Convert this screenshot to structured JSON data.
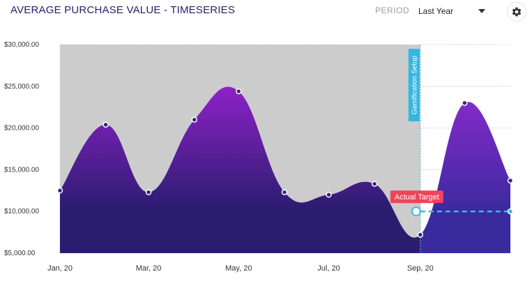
{
  "header": {
    "title": "AVERAGE PURCHASE VALUE - TIMESERIES",
    "period_label": "PERIOD",
    "period_value": "Last Year",
    "settings_icon": "gear-icon"
  },
  "colors": {
    "area_top": "#8d22c8",
    "area_bottom": "#2a1c6e",
    "forecast_top": "#8e2ad0",
    "forecast_bottom": "#3b2a9e",
    "gray_region": "#cccccc",
    "marker_line": "#3fb8e0",
    "badge_blue": "#35b7e0",
    "badge_red": "#f0445a",
    "target_line": "#3fb8e0"
  },
  "chart_data": {
    "type": "area",
    "x": [
      "2020-01-01",
      "2020-02-01",
      "2020-03-01",
      "2020-04-01",
      "2020-05-01",
      "2020-06-01",
      "2020-07-01",
      "2020-08-01",
      "2020-09-01",
      "2020-10-01",
      "2020-11-01"
    ],
    "series": [
      {
        "values": [
          12500,
          20400,
          12300,
          21000,
          24400,
          12300,
          12000,
          13300,
          7200,
          23000,
          13700
        ]
      }
    ],
    "x_ticks": [
      "Jan, 20",
      "Mar, 20",
      "May, 20",
      "Jul, 20",
      "Sep, 20"
    ],
    "y_ticks": [
      "$5,000.00",
      "$10,000.00",
      "$15,000.00",
      "$20,000.00",
      "$25,000.00",
      "$30,000.00"
    ],
    "ylim": [
      5000,
      30000
    ],
    "grid": true,
    "annotations": {
      "setup_marker": {
        "label": "Gamification Setup",
        "x": "2020-09-01"
      },
      "target": {
        "label": "Actual Target",
        "value": 10000,
        "from": "2020-09-01",
        "to": "2020-11-01"
      }
    }
  }
}
